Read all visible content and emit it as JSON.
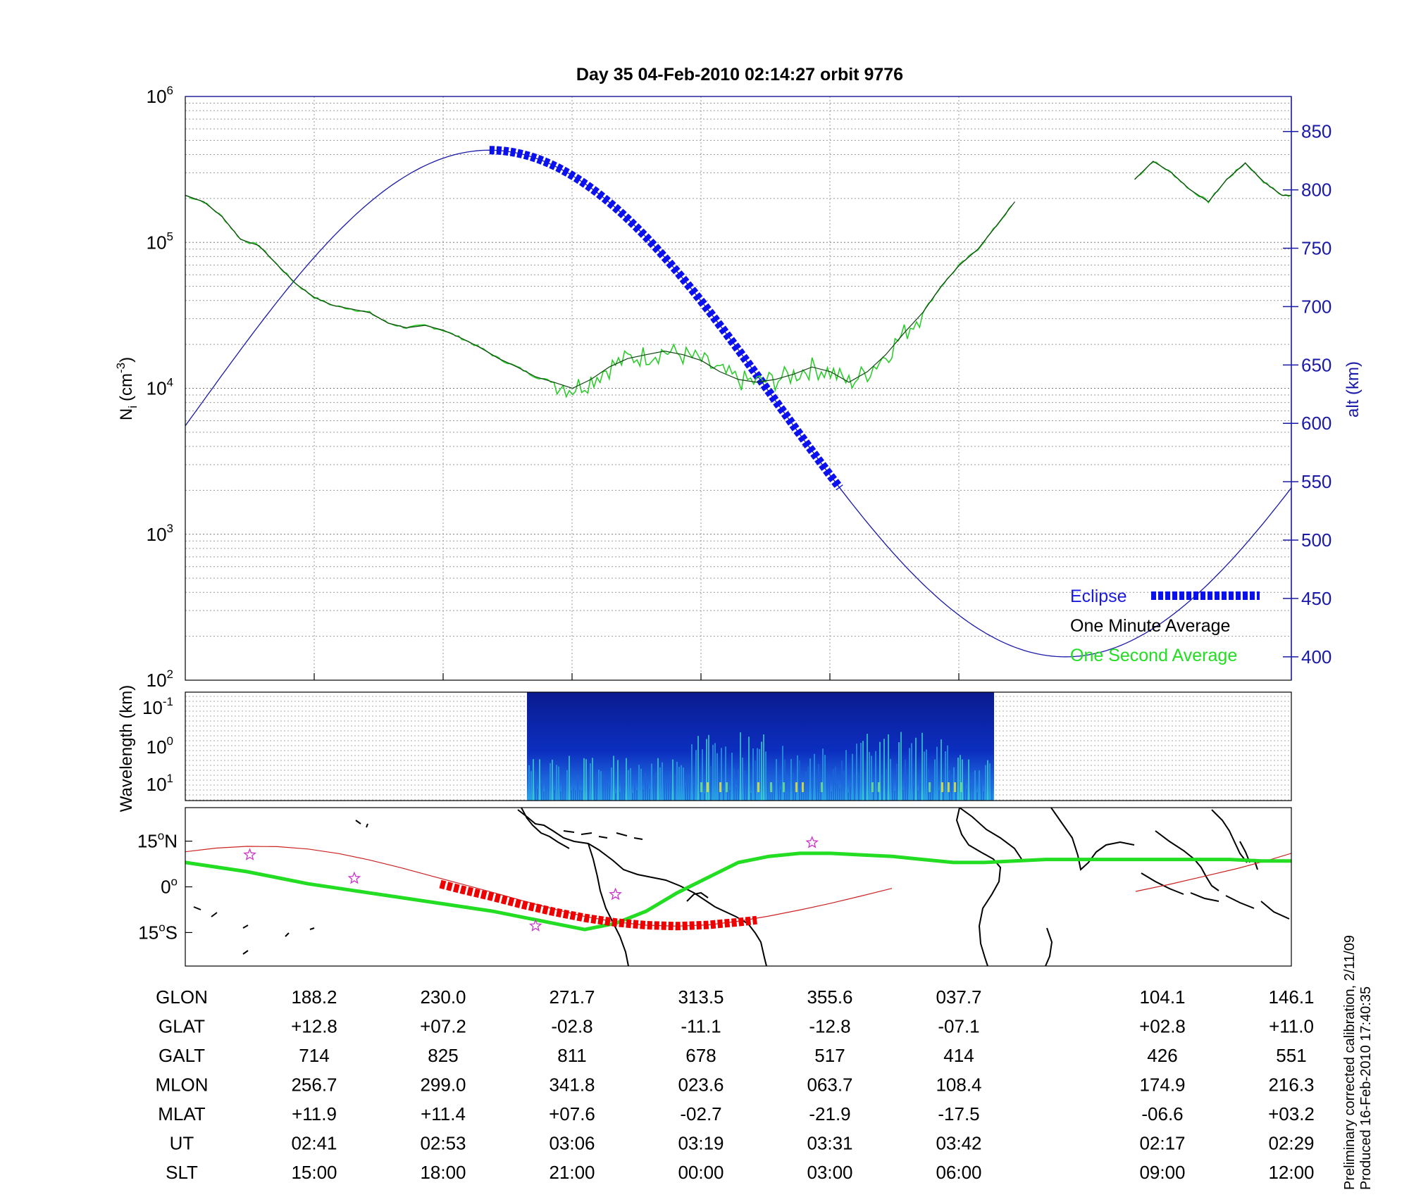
{
  "title": "Day 35  04-Feb-2010 02:14:27   orbit 9776",
  "chart_data": [
    {
      "type": "line",
      "panel": "ion-density",
      "ylabel": "N",
      "ylabel_sub": "i",
      "ylabel_units": "(cm",
      "ylabel_exp": "-3",
      "ylabel_close": ")",
      "yscale": "log",
      "ylim": [
        100,
        1000000
      ],
      "yticks": [
        {
          "base": "10",
          "exp": "2",
          "value": 100
        },
        {
          "base": "10",
          "exp": "3",
          "value": 1000
        },
        {
          "base": "10",
          "exp": "4",
          "value": 10000
        },
        {
          "base": "10",
          "exp": "5",
          "value": 100000
        },
        {
          "base": "10",
          "exp": "6",
          "value": 1000000
        }
      ],
      "y2label": "alt (km)",
      "y2lim": [
        380,
        880
      ],
      "y2ticks": [
        "400",
        "450",
        "500",
        "550",
        "600",
        "650",
        "700",
        "750",
        "800",
        "850"
      ],
      "xlim_ut_minutes": [
        0,
        60
      ],
      "grid": true,
      "legend_position": "bottom-right",
      "legend": [
        {
          "label": "Eclipse",
          "color": "#0000ee"
        },
        {
          "label": "One Minute Average",
          "color": "#000000"
        },
        {
          "label": "One Second Average",
          "color": "#00cc00"
        }
      ],
      "series": [
        {
          "name": "One Minute Average",
          "color": "#000000",
          "x": [
            0,
            1,
            2,
            3,
            4,
            5,
            6,
            7,
            8,
            9,
            10,
            11,
            12,
            13,
            14,
            15,
            16,
            17,
            18,
            19,
            20,
            21,
            22,
            23,
            24,
            25,
            26,
            27,
            28,
            29,
            30,
            31,
            32,
            33,
            34,
            35,
            36,
            37,
            38,
            39,
            40,
            41,
            42,
            43,
            44,
            45,
            46,
            47
          ],
          "y": [
            210000,
            190000,
            150000,
            105000,
            95000,
            70000,
            52000,
            42000,
            37000,
            35000,
            33000,
            28000,
            26000,
            27000,
            25000,
            22000,
            19000,
            16000,
            14000,
            12000,
            11000,
            10000,
            11500,
            14000,
            16000,
            17000,
            18000,
            17000,
            15500,
            13000,
            11500,
            11000,
            11500,
            12500,
            14000,
            13000,
            11000,
            13000,
            17000,
            24000,
            33000,
            50000,
            70000,
            90000,
            130000,
            190000,
            null,
            null
          ],
          "segments": [
            [
              0,
              47
            ]
          ]
        },
        {
          "name": "One Minute Average (late segment)",
          "color": "#000000",
          "x": [
            51.5,
            52.5,
            53.5,
            54.5,
            55.5,
            56.5,
            57.5,
            58.5,
            59.5,
            60
          ],
          "y": [
            270000,
            360000,
            300000,
            230000,
            190000,
            270000,
            350000,
            260000,
            210000,
            210000
          ]
        }
      ],
      "altitude_km": {
        "x": [
          0,
          2,
          4,
          6,
          8,
          10,
          12,
          14,
          16,
          16.5,
          18,
          20,
          22,
          24,
          26,
          28,
          30,
          32,
          34,
          36,
          38,
          40,
          42,
          44,
          46,
          48,
          50,
          52,
          54,
          56,
          58,
          60
        ],
        "y": [
          558,
          632,
          700,
          760,
          800,
          824,
          834,
          829,
          816,
          826,
          802,
          772,
          737,
          698,
          658,
          620,
          584,
          550,
          519,
          491,
          465,
          441,
          420,
          404,
          397,
          398,
          410,
          430,
          456,
          488,
          518,
          552
        ]
      },
      "eclipse_ut_range": [
        16.5,
        35.5
      ]
    },
    {
      "type": "heatmap",
      "panel": "spectrogram",
      "ylabel": "Wavelength (km)",
      "yticks": [
        {
          "base": "10",
          "exp": "-1"
        },
        {
          "base": "10",
          "exp": "0"
        },
        {
          "base": "10",
          "exp": "1"
        }
      ],
      "data_ut_range": [
        16.5,
        41.9
      ]
    },
    {
      "type": "line",
      "panel": "map",
      "yticks": [
        {
          "deg": "15",
          "hemi": "N",
          "lat": 15
        },
        {
          "deg": "0",
          "hemi": "",
          "lat": 0
        },
        {
          "deg": "15",
          "hemi": "S",
          "lat": -15
        }
      ],
      "ylim": [
        -26,
        26
      ],
      "series": [
        {
          "name": "orbit track",
          "color": "#cc2222",
          "lon": [
            170,
            180,
            190,
            200,
            210,
            220,
            230,
            240,
            250,
            260,
            270,
            280,
            290,
            300,
            310,
            320,
            330,
            340,
            350,
            360,
            370,
            380,
            390,
            400
          ],
          "lat": [
            11.5,
            12.7,
            13.3,
            13.2,
            12.4,
            10.9,
            8.8,
            6.3,
            3.6,
            0.9,
            -1.8,
            -4.6,
            -7.3,
            -9.7,
            -11.5,
            -12.6,
            -12.9,
            -12.5,
            -11.3,
            -9.6,
            -7.6,
            -5.4,
            -3.0,
            -0.5
          ]
        },
        {
          "name": "orbit track east",
          "color": "#cc2222",
          "lon": [
            100,
            110,
            120,
            130,
            140,
            146
          ],
          "lat": [
            -1.5,
            0.8,
            3.4,
            6.0,
            9.0,
            11.0
          ]
        },
        {
          "name": "eclipse",
          "color": "#ee0000",
          "lon": [
            253,
            260,
            270,
            280,
            290,
            300,
            310,
            320,
            330,
            340,
            350,
            356
          ],
          "lat": [
            0.9,
            -0.9,
            -3.3,
            -5.9,
            -8.2,
            -10.2,
            -11.7,
            -12.6,
            -12.9,
            -12.5,
            -11.6,
            -10.9
          ]
        },
        {
          "name": "magnetic equator",
          "color": "#22dd22",
          "lon": [
            170,
            180,
            190,
            200,
            210,
            220,
            230,
            240,
            250,
            260,
            270,
            280,
            290,
            300,
            310,
            320,
            330,
            340,
            350,
            360,
            370,
            380,
            390,
            400,
            410,
            420,
            430,
            440,
            450,
            460,
            470,
            480,
            490,
            500,
            510,
            520,
            530
          ],
          "lat": [
            8,
            6.5,
            5,
            3,
            1,
            -0.5,
            -2,
            -3.5,
            -5,
            -6.5,
            -8,
            -10,
            -12,
            -14,
            -12,
            -8,
            -2,
            3,
            8,
            10,
            11,
            11,
            10.5,
            10,
            9,
            8,
            8,
            8.5,
            9,
            9,
            9,
            9,
            9,
            9,
            9,
            8.5,
            8.5
          ]
        }
      ],
      "markers_lonlat": [
        [
          191,
          10.5
        ],
        [
          225,
          2.8
        ],
        [
          284,
          -12.8
        ],
        [
          310,
          -2.5
        ],
        [
          374,
          14.5
        ]
      ]
    }
  ],
  "table": {
    "rows": [
      {
        "label": "GLON",
        "values": [
          "188.2",
          "230.0",
          "271.7",
          "313.5",
          "355.6",
          "037.7",
          "104.1",
          "146.1"
        ]
      },
      {
        "label": "GLAT",
        "values": [
          "+12.8",
          "+07.2",
          "-02.8",
          "-11.1",
          "-12.8",
          "-07.1",
          "+02.8",
          "+11.0"
        ]
      },
      {
        "label": "GALT",
        "values": [
          "714",
          "825",
          "811",
          "678",
          "517",
          "414",
          "426",
          "551"
        ]
      },
      {
        "label": "MLON",
        "values": [
          "256.7",
          "299.0",
          "341.8",
          "023.6",
          "063.7",
          "108.4",
          "174.9",
          "216.3"
        ]
      },
      {
        "label": "MLAT",
        "values": [
          "+11.9",
          "+11.4",
          "+07.6",
          "-02.7",
          "-21.9",
          "-17.5",
          "-06.6",
          "+03.2"
        ]
      },
      {
        "label": "UT",
        "values": [
          "02:41",
          "02:53",
          "03:06",
          "03:19",
          "03:31",
          "03:42",
          "02:17",
          "02:29"
        ]
      },
      {
        "label": "SLT",
        "values": [
          "15:00",
          "18:00",
          "21:00",
          "00:00",
          "03:00",
          "06:00",
          "09:00",
          "12:00"
        ]
      }
    ]
  },
  "footnote": {
    "line1": "Preliminary corrected calibration, 2/11/09",
    "line2": "Produced 16-Feb-2010 17:40:35"
  }
}
